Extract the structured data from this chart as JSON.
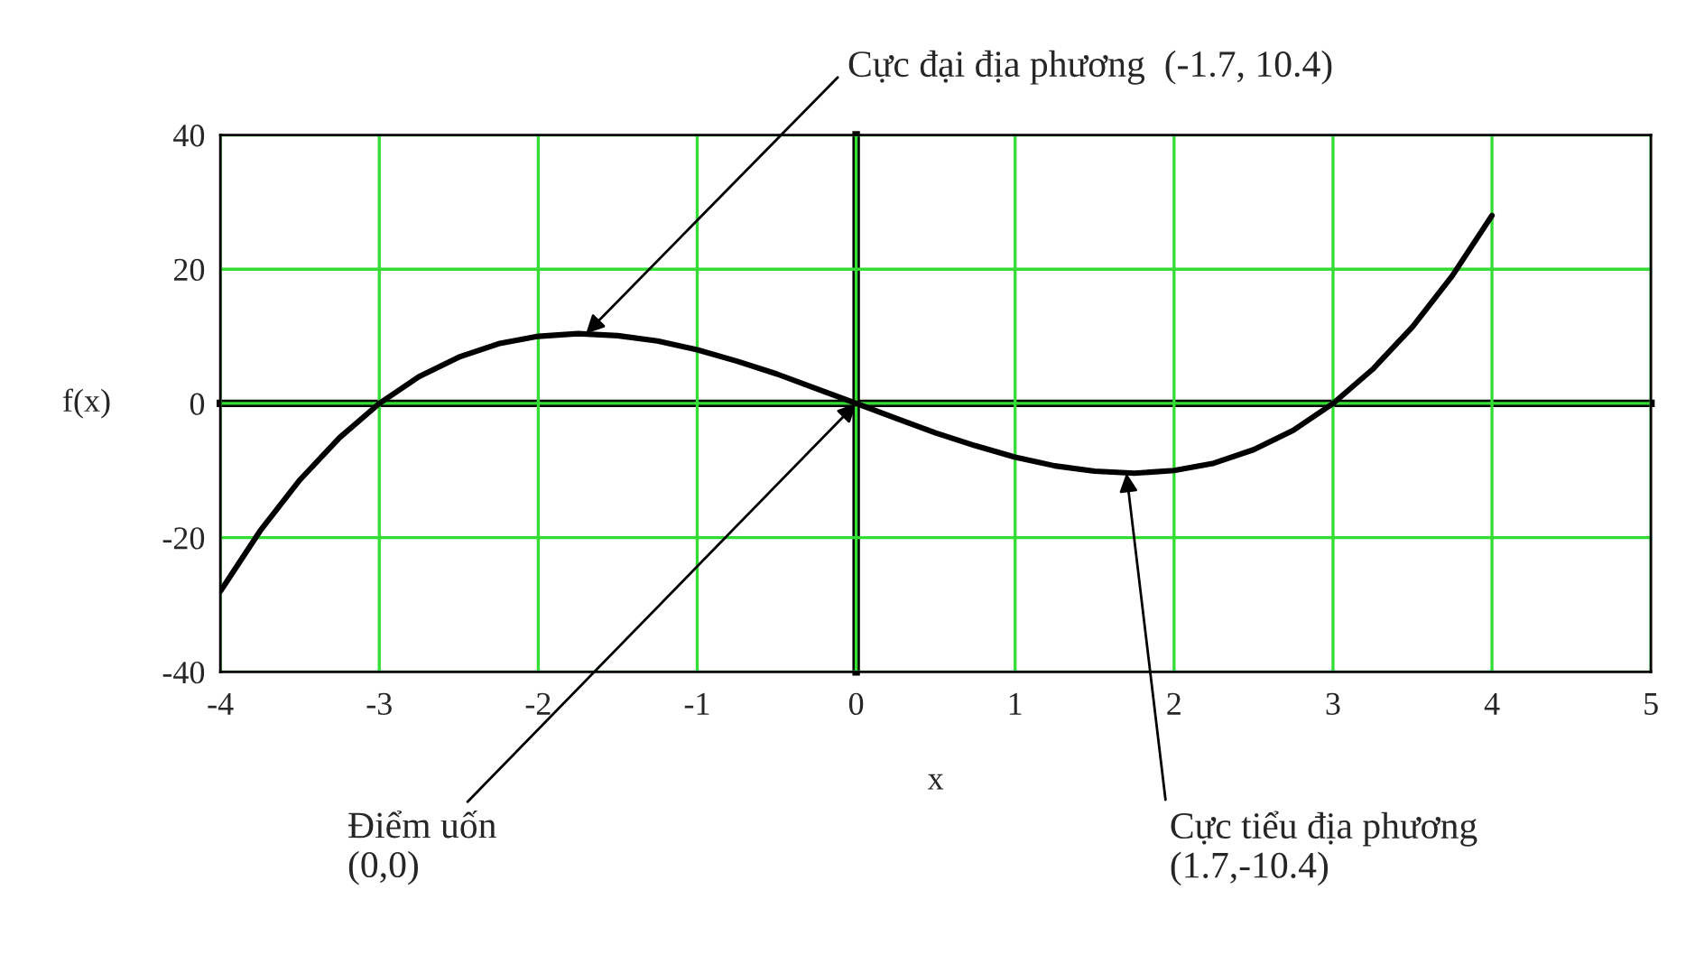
{
  "chart_data": {
    "type": "line",
    "x": [
      -4,
      -3.75,
      -3.5,
      -3.25,
      -3,
      -2.75,
      -2.5,
      -2.25,
      -2,
      -1.75,
      -1.5,
      -1.25,
      -1,
      -0.75,
      -0.5,
      -0.25,
      0,
      0.25,
      0.5,
      0.75,
      1,
      1.25,
      1.5,
      1.75,
      2,
      2.25,
      2.5,
      2.75,
      3,
      3.25,
      3.5,
      3.75,
      4
    ],
    "series": [
      {
        "color": "#000000",
        "values": [
          -28,
          -19.0,
          -11.4,
          -5.1,
          0,
          4.0,
          6.9,
          8.9,
          10,
          10.4,
          10.1,
          9.3,
          8,
          6.3,
          4.4,
          2.2,
          0,
          -2.2,
          -4.4,
          -6.3,
          -8,
          -9.3,
          -10.1,
          -10.4,
          -10,
          -8.9,
          -6.9,
          -4.0,
          0,
          5.1,
          11.4,
          19.0,
          28
        ]
      }
    ],
    "xlabel": "x",
    "ylabel": "f(x)",
    "xlim": [
      -4,
      5
    ],
    "ylim": [
      -40,
      40
    ],
    "xticks": [
      -4,
      -3,
      -2,
      -1,
      0,
      1,
      2,
      3,
      4,
      5
    ],
    "yticks": [
      -40,
      -20,
      0,
      20,
      40
    ],
    "grid": true,
    "legend": false,
    "marker": "none",
    "line_style": "solid",
    "annotations": [
      {
        "text": "Cực đại địa phương  (-1.7, 10.4)",
        "x": -1.7,
        "y": 10.4
      },
      {
        "text": "Điểm uốn\n(0,0)",
        "x": 0,
        "y": 0
      },
      {
        "text": "Cực tiểu địa phương\n(1.7,-10.4)",
        "x": 1.7,
        "y": -10.4
      }
    ]
  }
}
